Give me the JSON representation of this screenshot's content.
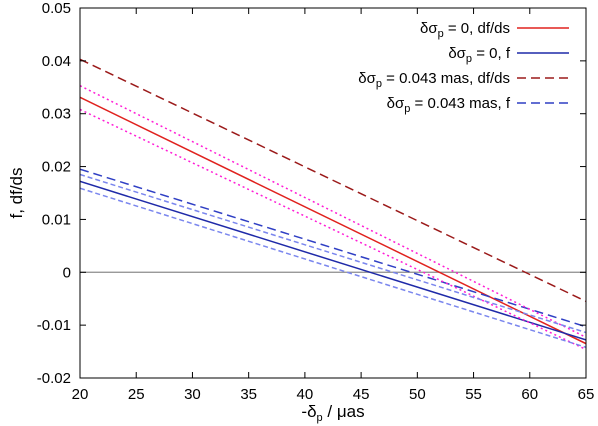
{
  "chart_data": {
    "type": "line",
    "xlabel": "-δp / μas",
    "ylabel": "f, df/ds",
    "xlim": [
      20,
      65
    ],
    "ylim": [
      -0.02,
      0.05
    ],
    "xticks": [
      20,
      25,
      30,
      35,
      40,
      45,
      50,
      55,
      60,
      65
    ],
    "xtick_labels": [
      "20",
      "25",
      "30",
      "35",
      "40",
      "45",
      "50",
      "55",
      "60",
      "65"
    ],
    "yticks": [
      -0.02,
      -0.01,
      0,
      0.01,
      0.02,
      0.03,
      0.04,
      0.05
    ],
    "ytick_labels": [
      "-0.02",
      "-0.01",
      "0",
      "0.01",
      "0.02",
      "0.03",
      "0.04",
      "0.05"
    ],
    "grid": false,
    "legend_position": "top-right",
    "zero_line": {
      "y": 0,
      "color": "#8c8c8c"
    },
    "series": [
      {
        "name": "δσp = 0, df/ds",
        "legend": true,
        "color": "#e0221e",
        "dash": "solid",
        "x": [
          20,
          65
        ],
        "y": [
          0.0331,
          -0.0135
        ]
      },
      {
        "name": "δσp = 0, f",
        "legend": true,
        "color": "#1f2aa8",
        "dash": "solid",
        "x": [
          20,
          65
        ],
        "y": [
          0.0172,
          -0.0128
        ]
      },
      {
        "name": "δσp = 0.043 mas, df/ds",
        "legend": true,
        "color": "#9b1a1a",
        "dash": "long",
        "x": [
          20,
          65
        ],
        "y": [
          0.0403,
          -0.0055
        ]
      },
      {
        "name": "δσp = 0.043 mas, f",
        "legend": true,
        "color": "#2f3fc4",
        "dash": "long",
        "x": [
          20,
          65
        ],
        "y": [
          0.0195,
          -0.0103
        ]
      },
      {
        "legend": false,
        "color": "#ff1dd6",
        "dash": "dot",
        "x": [
          20,
          65
        ],
        "y": [
          0.0353,
          -0.0123
        ]
      },
      {
        "legend": false,
        "color": "#ff1dd6",
        "dash": "dot",
        "x": [
          20,
          65
        ],
        "y": [
          0.0308,
          -0.0146
        ]
      },
      {
        "legend": false,
        "color": "#7a86ee",
        "dash": "short",
        "x": [
          20,
          65
        ],
        "y": [
          0.0185,
          -0.0114
        ]
      },
      {
        "legend": false,
        "color": "#7a86ee",
        "dash": "short",
        "x": [
          20,
          65
        ],
        "y": [
          0.0159,
          -0.0142
        ]
      }
    ]
  }
}
